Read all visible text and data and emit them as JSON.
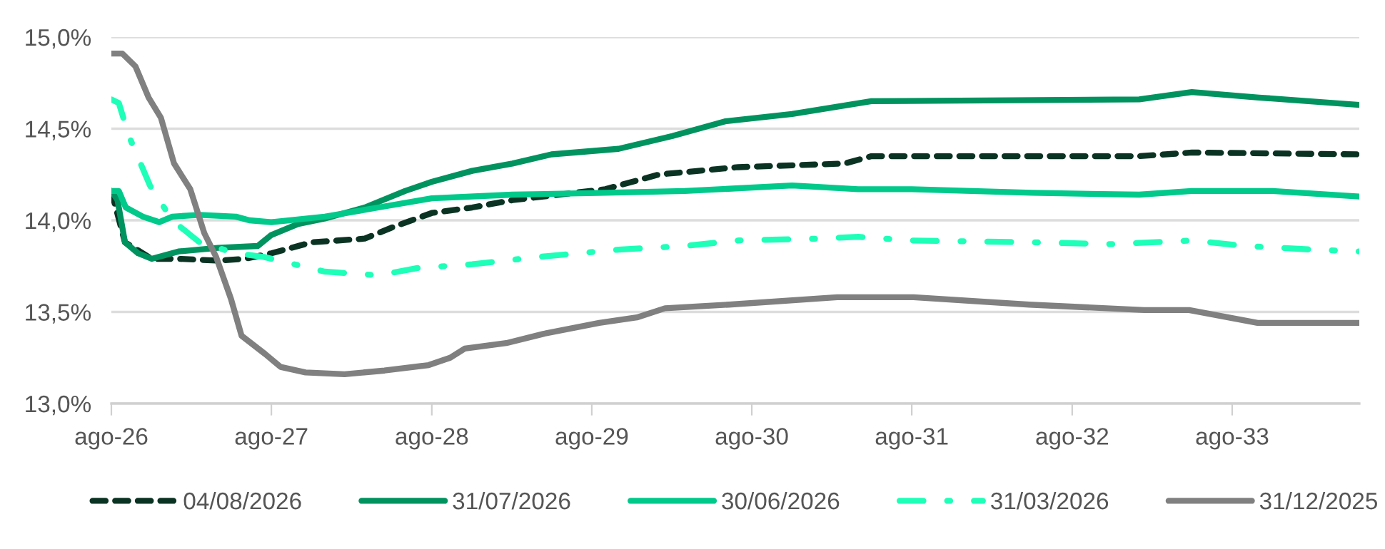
{
  "chart_data": {
    "type": "line",
    "xlim": [
      "2026-08-01",
      "2034-05-18"
    ],
    "xticks": [
      {
        "value": "2026-08-01",
        "label": "ago-26"
      },
      {
        "value": "2027-08-01",
        "label": "ago-27"
      },
      {
        "value": "2028-08-01",
        "label": "ago-28"
      },
      {
        "value": "2029-08-01",
        "label": "ago-29"
      },
      {
        "value": "2030-08-01",
        "label": "ago-30"
      },
      {
        "value": "2031-08-01",
        "label": "ago-31"
      },
      {
        "value": "2032-08-01",
        "label": "ago-32"
      },
      {
        "value": "2033-08-01",
        "label": "ago-33"
      }
    ],
    "ylim": [
      13.0,
      15.0
    ],
    "yticks": [
      {
        "value": 13.0,
        "label": "13,0%"
      },
      {
        "value": 13.5,
        "label": "13,5%"
      },
      {
        "value": 14.0,
        "label": "14,0%"
      },
      {
        "value": 14.5,
        "label": "14,5%"
      },
      {
        "value": 15.0,
        "label": "15,0%"
      }
    ],
    "grid": "y",
    "legend": "bottom",
    "marker": "none",
    "series": [
      {
        "name": "04/08/2026",
        "color": "#0b3324",
        "line_style": "dashed",
        "x": [
          "2026-08-01",
          "2026-09-01",
          "2026-11-01",
          "2027-01-01",
          "2027-04-01",
          "2027-06-01",
          "2027-08-01",
          "2027-11-01",
          "2028-01-01",
          "2028-03-01",
          "2028-05-01",
          "2028-08-01",
          "2028-11-01",
          "2029-02-01",
          "2029-09-01",
          "2030-01-01",
          "2030-07-01",
          "2031-03-01",
          "2031-05-01",
          "2033-01-01",
          "2033-05-01",
          "2034-05-18"
        ],
        "values": [
          14.16,
          13.88,
          13.79,
          13.79,
          13.78,
          13.79,
          13.82,
          13.88,
          13.89,
          13.9,
          13.96,
          14.04,
          14.07,
          14.11,
          14.17,
          14.25,
          14.29,
          14.31,
          14.35,
          14.35,
          14.37,
          14.36
        ]
      },
      {
        "name": "31/07/2026",
        "color": "#00935f",
        "line_style": "solid",
        "x": [
          "2026-08-01",
          "2026-08-15",
          "2026-09-01",
          "2026-10-01",
          "2026-11-01",
          "2027-01-01",
          "2027-04-01",
          "2027-07-01",
          "2027-08-01",
          "2027-10-01",
          "2027-12-01",
          "2028-03-01",
          "2028-06-01",
          "2028-08-01",
          "2028-11-01",
          "2029-02-01",
          "2029-05-01",
          "2029-10-01",
          "2030-02-01",
          "2030-06-01",
          "2030-11-01",
          "2031-05-01",
          "2033-01-01",
          "2033-05-01",
          "2033-10-01",
          "2034-05-18"
        ],
        "values": [
          14.16,
          14.11,
          13.88,
          13.82,
          13.79,
          13.83,
          13.85,
          13.86,
          13.92,
          13.98,
          14.01,
          14.07,
          14.16,
          14.21,
          14.27,
          14.31,
          14.36,
          14.39,
          14.46,
          14.54,
          14.58,
          14.65,
          14.66,
          14.7,
          14.67,
          14.63
        ]
      },
      {
        "name": "30/06/2026",
        "color": "#00c98a",
        "line_style": "solid",
        "x": [
          "2026-08-01",
          "2026-08-18",
          "2026-09-03",
          "2026-10-12",
          "2026-11-18",
          "2026-12-18",
          "2027-02-18",
          "2027-05-12",
          "2027-06-12",
          "2027-08-01",
          "2027-12-01",
          "2028-04-01",
          "2028-08-01",
          "2029-02-01",
          "2029-09-01",
          "2030-03-01",
          "2030-11-01",
          "2031-04-01",
          "2031-08-01",
          "2032-05-01",
          "2033-01-01",
          "2033-05-01",
          "2033-11-01",
          "2034-05-18"
        ],
        "values": [
          14.16,
          14.16,
          14.07,
          14.02,
          13.99,
          14.02,
          14.03,
          14.02,
          14.0,
          13.99,
          14.02,
          14.07,
          14.12,
          14.14,
          14.15,
          14.16,
          14.19,
          14.17,
          14.17,
          14.15,
          14.14,
          14.16,
          14.16,
          14.13
        ]
      },
      {
        "name": "31/03/2026",
        "color": "#1effb7",
        "line_style": "dashdot",
        "x": [
          "2026-08-01",
          "2026-08-18",
          "2026-09-10",
          "2026-10-28",
          "2026-12-18",
          "2027-02-18",
          "2027-05-12",
          "2027-07-15",
          "2027-12-01",
          "2028-04-01",
          "2028-07-01",
          "2028-11-01",
          "2029-04-01",
          "2029-10-01",
          "2030-03-01",
          "2030-07-01",
          "2031-01-01",
          "2031-04-01",
          "2031-08-01",
          "2032-05-01",
          "2032-11-01",
          "2033-05-01",
          "2033-09-01",
          "2034-02-01",
          "2034-05-18"
        ],
        "values": [
          14.66,
          14.64,
          14.46,
          14.19,
          14.0,
          13.88,
          13.82,
          13.8,
          13.72,
          13.7,
          13.74,
          13.76,
          13.8,
          13.84,
          13.86,
          13.89,
          13.9,
          13.91,
          13.89,
          13.88,
          13.87,
          13.89,
          13.86,
          13.84,
          13.83
        ]
      },
      {
        "name": "31/12/2025",
        "color": "#808080",
        "line_style": "solid",
        "x": [
          "2026-08-01",
          "2026-08-26",
          "2026-09-25",
          "2026-10-25",
          "2026-11-22",
          "2026-12-22",
          "2027-01-28",
          "2027-03-01",
          "2027-03-28",
          "2027-05-01",
          "2027-05-25",
          "2027-07-18",
          "2027-08-22",
          "2027-10-18",
          "2028-01-15",
          "2028-04-15",
          "2028-07-25",
          "2028-09-12",
          "2028-10-15",
          "2029-01-18",
          "2029-04-12",
          "2029-08-18",
          "2029-11-12",
          "2030-01-15",
          "2030-06-10",
          "2031-02-12",
          "2031-05-01",
          "2031-08-05",
          "2032-04-25",
          "2033-01-12",
          "2033-04-25",
          "2033-09-28",
          "2034-05-18"
        ],
        "values": [
          14.91,
          14.91,
          14.84,
          14.67,
          14.56,
          14.31,
          14.17,
          13.93,
          13.8,
          13.57,
          13.37,
          13.27,
          13.2,
          13.17,
          13.16,
          13.18,
          13.21,
          13.25,
          13.3,
          13.33,
          13.38,
          13.44,
          13.47,
          13.52,
          13.54,
          13.58,
          13.58,
          13.58,
          13.54,
          13.51,
          13.51,
          13.44,
          13.44
        ]
      }
    ]
  }
}
